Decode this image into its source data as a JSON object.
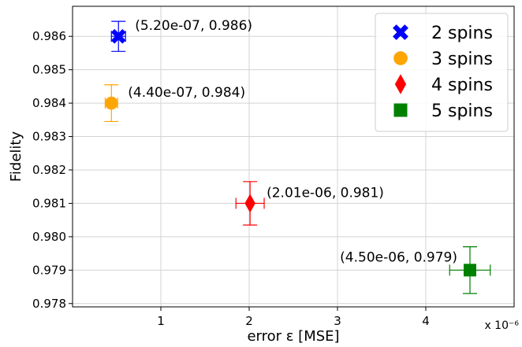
{
  "chart_data": {
    "type": "scatter",
    "title": "",
    "xlabel": "error ε [MSE]",
    "ylabel": "Fidelity",
    "x_scale_note": "x 10⁻⁶",
    "xlim": [
      0.0,
      5.0
    ],
    "ylim": [
      0.9779,
      0.9869
    ],
    "x_ticks": [
      1,
      2,
      3,
      4
    ],
    "y_ticks": [
      0.978,
      0.979,
      0.98,
      0.981,
      0.982,
      0.983,
      0.984,
      0.985,
      0.986
    ],
    "y_tick_labels": [
      "0.978",
      "0.979",
      "0.980",
      "0.981",
      "0.982",
      "0.983",
      "0.984",
      "0.985",
      "0.986"
    ],
    "grid": true,
    "legend_position": "top-right",
    "series": [
      {
        "name": "2 spins",
        "marker": "x",
        "color": "#0000ff",
        "x": 0.52,
        "y": 0.986,
        "xerr": 0.08,
        "yerr": 0.00045,
        "label": "(5.20e-07, 0.986)",
        "label_side": "right"
      },
      {
        "name": "3 spins",
        "marker": "circle",
        "color": "#ffa500",
        "x": 0.44,
        "y": 0.984,
        "xerr": 0.07,
        "yerr": 0.00055,
        "label": "(4.40e-07, 0.984)",
        "label_side": "right"
      },
      {
        "name": "4 spins",
        "marker": "diamond",
        "color": "#ff0000",
        "x": 2.01,
        "y": 0.981,
        "xerr": 0.16,
        "yerr": 0.00065,
        "label": "(2.01e-06, 0.981)",
        "label_side": "right"
      },
      {
        "name": "5 spins",
        "marker": "square",
        "color": "#008000",
        "x": 4.5,
        "y": 0.979,
        "xerr": 0.23,
        "yerr": 0.0007,
        "label": "(4.50e-06, 0.979)",
        "label_side": "left"
      }
    ]
  }
}
